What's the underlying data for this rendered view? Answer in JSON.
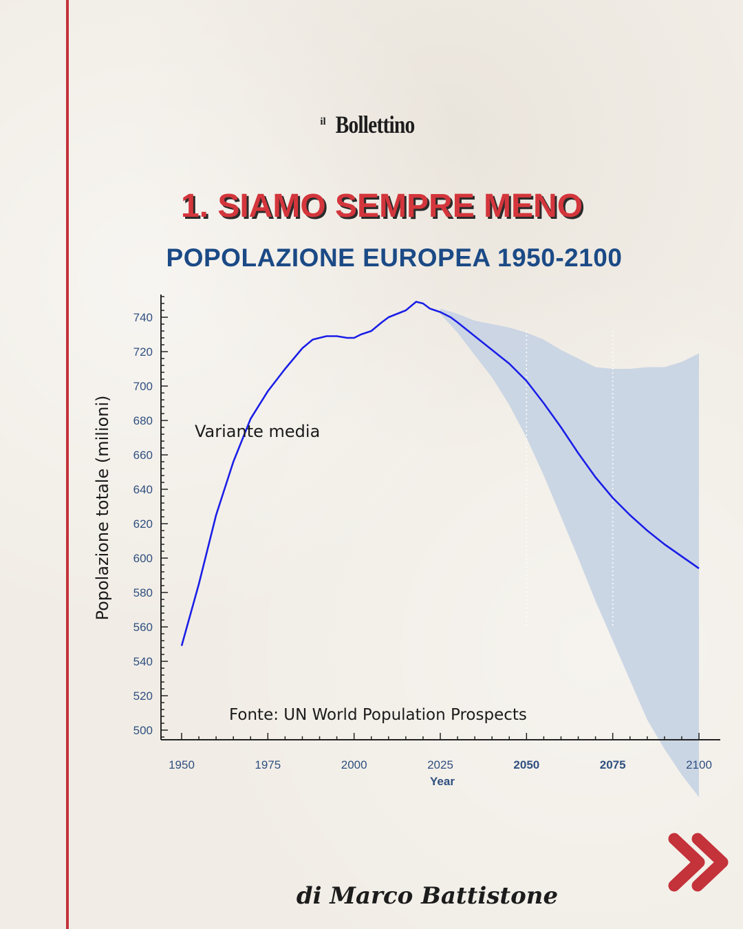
{
  "logo": {
    "prefix": "il",
    "name": "Bollettino"
  },
  "headline": "1. SIAMO SEMPRE MENO",
  "subtitle": "POPOLAZIONE EUROPEA 1950-2100",
  "author": "di Marco Battistone",
  "colors": {
    "accent_red": "#c4323a",
    "headline_red": "#d3363c",
    "title_blue": "#1b4a86",
    "line_blue": "#1a1ee6",
    "band_fill": "#c7d3e3",
    "tick_blue": "#2f4f7f"
  },
  "icons": {
    "next": "double-chevron-right-icon"
  },
  "chart_data": {
    "type": "line",
    "xlabel": "Year",
    "ylabel": "Popolazione totale (milioni)",
    "annotation_series": "Variante media",
    "source_note": "Fonte: UN World Population Prospects",
    "xlim": [
      1950,
      2100
    ],
    "ylim": [
      496,
      752
    ],
    "x_ticks": [
      1950,
      1975,
      2000,
      2025,
      2050,
      2075,
      2100
    ],
    "y_ticks": [
      500,
      520,
      540,
      560,
      580,
      600,
      620,
      640,
      660,
      680,
      700,
      720,
      740
    ],
    "grid": "dotted vertical lines at 2050 and 2075 inside the projection band",
    "series": [
      {
        "values_x": [
          1950,
          1955,
          1960,
          1965,
          1970,
          1975,
          1980,
          1985,
          1988,
          1990,
          1992,
          1995,
          1998,
          2000,
          2002,
          2005,
          2008,
          2010,
          2015,
          2018,
          2020,
          2022,
          2025,
          2028,
          2030,
          2035,
          2040,
          2045,
          2050,
          2055,
          2060,
          2065,
          2070,
          2075,
          2080,
          2085,
          2090,
          2095,
          2100
        ],
        "values_y": [
          549,
          585,
          625,
          656,
          681,
          697,
          710,
          722,
          727,
          728,
          729,
          729,
          728,
          728,
          730,
          732,
          737,
          740,
          744,
          749,
          748,
          745,
          743,
          740,
          737,
          729,
          721,
          713,
          703,
          690,
          676,
          661,
          647,
          635,
          625,
          616,
          608,
          601,
          594
        ]
      }
    ],
    "band": {
      "x": [
        2025,
        2030,
        2035,
        2040,
        2045,
        2050,
        2055,
        2060,
        2065,
        2070,
        2075,
        2080,
        2085,
        2090,
        2095,
        2100
      ],
      "upper": [
        745,
        742,
        738,
        736,
        734,
        731,
        727,
        721,
        716,
        711,
        710,
        710,
        711,
        711,
        714,
        719
      ],
      "lower": [
        742,
        731,
        718,
        705,
        689,
        670,
        648,
        624,
        600,
        575,
        552,
        529,
        506,
        489,
        474,
        461
      ]
    }
  }
}
